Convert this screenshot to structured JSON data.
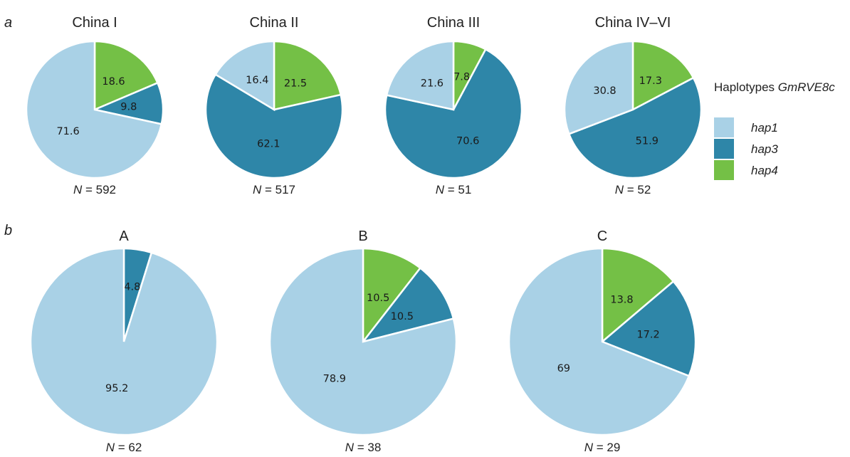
{
  "colors": {
    "hap1": "#a9d1e6",
    "hap3": "#2e86a8",
    "hap4": "#74c046"
  },
  "panels": {
    "a": "a",
    "b": "b"
  },
  "legend": {
    "title_prefix": "Haplotypes ",
    "title_gene": "GmRVE8c",
    "items": [
      "hap1",
      "hap3",
      "hap4"
    ]
  },
  "n_prefix": "N",
  "chart_data": [
    {
      "type": "pie",
      "panel": "a",
      "title": "China I",
      "n": "= 592",
      "slices": [
        {
          "name": "hap4",
          "value": 18.6,
          "label": "18.6"
        },
        {
          "name": "hap3",
          "value": 9.8,
          "label": "9.8"
        },
        {
          "name": "hap1",
          "value": 71.6,
          "label": "71.6"
        }
      ]
    },
    {
      "type": "pie",
      "panel": "a",
      "title": "China II",
      "n": "= 517",
      "slices": [
        {
          "name": "hap4",
          "value": 21.5,
          "label": "21.5"
        },
        {
          "name": "hap3",
          "value": 62.1,
          "label": "62.1"
        },
        {
          "name": "hap1",
          "value": 16.4,
          "label": "16.4"
        }
      ]
    },
    {
      "type": "pie",
      "panel": "a",
      "title": "China III",
      "n": "= 51",
      "slices": [
        {
          "name": "hap4",
          "value": 7.8,
          "label": "7.8"
        },
        {
          "name": "hap3",
          "value": 70.6,
          "label": "70.6"
        },
        {
          "name": "hap1",
          "value": 21.6,
          "label": "21.6"
        }
      ]
    },
    {
      "type": "pie",
      "panel": "a",
      "title": "China IV–VI",
      "n": "= 52",
      "slices": [
        {
          "name": "hap4",
          "value": 17.3,
          "label": "17.3"
        },
        {
          "name": "hap3",
          "value": 51.9,
          "label": "51.9"
        },
        {
          "name": "hap1",
          "value": 30.8,
          "label": "30.8"
        }
      ]
    },
    {
      "type": "pie",
      "panel": "b",
      "title": "A",
      "n": "= 62",
      "slices": [
        {
          "name": "hap4",
          "value": 0,
          "label": ""
        },
        {
          "name": "hap3",
          "value": 4.8,
          "label": "4.8"
        },
        {
          "name": "hap1",
          "value": 95.2,
          "label": "95.2"
        }
      ]
    },
    {
      "type": "pie",
      "panel": "b",
      "title": "B",
      "n": "= 38",
      "slices": [
        {
          "name": "hap4",
          "value": 10.5,
          "label": "10.5"
        },
        {
          "name": "hap3",
          "value": 10.5,
          "label": "10.5"
        },
        {
          "name": "hap1",
          "value": 78.9,
          "label": "78.9"
        }
      ]
    },
    {
      "type": "pie",
      "panel": "b",
      "title": "C",
      "n": "= 29",
      "slices": [
        {
          "name": "hap4",
          "value": 13.8,
          "label": "13.8"
        },
        {
          "name": "hap3",
          "value": 17.2,
          "label": "17.2"
        },
        {
          "name": "hap1",
          "value": 69,
          "label": "69"
        }
      ]
    }
  ]
}
